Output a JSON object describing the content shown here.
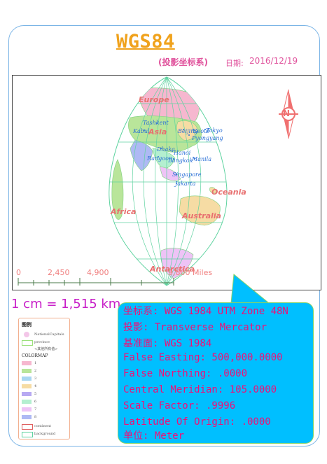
{
  "title": "WGS84",
  "subtitle": "(投影坐标系)",
  "date": {
    "label": "日期:",
    "value": "2016/12/19"
  },
  "map": {
    "continents": [
      "Europe",
      "Asia",
      "Oceania",
      "Africa",
      "Australia",
      "Antarctica"
    ],
    "cities": [
      "Tashkent",
      "Kabul",
      "Beijing",
      "Seoul",
      "Tokyo",
      "Pyongyang",
      "Dhaka",
      "Hanoi",
      "Rangoon",
      "Bangkok",
      "Manila",
      "Singapore",
      "Jakarta"
    ],
    "north_arrow_letter": "N",
    "colors": {
      "graticule": "#5fd3a0",
      "continent_label": "#e87070",
      "city_label": "#2a6fd6",
      "north_arrow": "#f07070"
    }
  },
  "scale_bar": {
    "labels": [
      "0",
      "2,450",
      "4,900",
      "9,800 Miles"
    ]
  },
  "cm_scale": "1 cm = 1,515 km",
  "legend": {
    "title": "图例",
    "capitals_label": "NationalCapitals",
    "province_label": "province",
    "province_sub": "<其他所有值>",
    "colormap_title": "COLORMAP",
    "colormap": [
      {
        "label": "1",
        "color": "#f6b7cf"
      },
      {
        "label": "2",
        "color": "#b9e59a"
      },
      {
        "label": "3",
        "color": "#a9d6f2"
      },
      {
        "label": "4",
        "color": "#f6dca4"
      },
      {
        "label": "5",
        "color": "#b7a9f2"
      },
      {
        "label": "6",
        "color": "#b4efd0"
      },
      {
        "label": "7",
        "color": "#eec3f6"
      },
      {
        "label": "8",
        "color": "#aeb9f4"
      }
    ],
    "continent_label": "continent",
    "background_label": "background"
  },
  "projection_info": [
    "坐标系: WGS 1984 UTM Zone 48N",
    "投影: Transverse Mercator",
    "基准面: WGS 1984",
    "False Easting: 500,000.0000",
    "False Northing: .0000",
    "Central Meridian: 105.0000",
    "Scale Factor: .9996",
    "Latitude Of Origin: .0000",
    "单位: Meter"
  ]
}
